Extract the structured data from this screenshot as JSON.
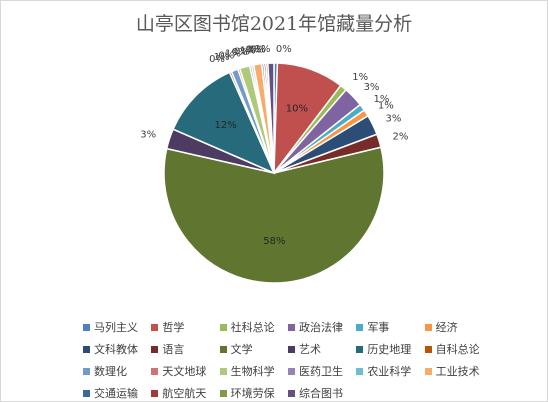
{
  "chart_data": {
    "type": "pie",
    "title": "山亭区图书馆2021年馆藏量分析",
    "legend_position": "bottom",
    "slices": [
      {
        "name": "马列主义",
        "value": 0.5,
        "label": "0%",
        "color": "#4f81bd"
      },
      {
        "name": "哲学",
        "value": 10,
        "label": "10%",
        "color": "#c0504d"
      },
      {
        "name": "社科总论",
        "value": 1,
        "label": "1%",
        "color": "#9bbb59"
      },
      {
        "name": "政治法律",
        "value": 3,
        "label": "3%",
        "color": "#8064a2"
      },
      {
        "name": "军事",
        "value": 1,
        "label": "1%",
        "color": "#4bacc6"
      },
      {
        "name": "经济",
        "value": 1,
        "label": "1%",
        "color": "#f79646"
      },
      {
        "name": "文科教体",
        "value": 3,
        "label": "3%",
        "color": "#2c4d75"
      },
      {
        "name": "语言",
        "value": 2,
        "label": "2%",
        "color": "#772c2a"
      },
      {
        "name": "文学",
        "value": 58,
        "label": "58%",
        "color": "#5f7530"
      },
      {
        "name": "艺术",
        "value": 3,
        "label": "3%",
        "color": "#4d3b62"
      },
      {
        "name": "历史地理",
        "value": 12,
        "label": "12%",
        "color": "#276a7c"
      },
      {
        "name": "自科总论",
        "value": 0.3,
        "label": "0%",
        "color": "#b65708"
      },
      {
        "name": "数理化",
        "value": 1,
        "label": "1%",
        "color": "#729aca"
      },
      {
        "name": "天文地球",
        "value": 0.3,
        "label": "0%",
        "color": "#cd7371"
      },
      {
        "name": "生物科学",
        "value": 1.5,
        "label": "1%",
        "color": "#afc97a"
      },
      {
        "name": "医药卫生",
        "value": 0.3,
        "label": "0%",
        "color": "#9983b5"
      },
      {
        "name": "农业科学",
        "value": 0.3,
        "label": "0%",
        "color": "#6fbdd1"
      },
      {
        "name": "工业技术",
        "value": 1.2,
        "label": "1%",
        "color": "#f9ab6b"
      },
      {
        "name": "交通运输",
        "value": 0.3,
        "label": "0%",
        "color": "#3a679c"
      },
      {
        "name": "航空航天",
        "value": 0.3,
        "label": "0%",
        "color": "#9f3b38"
      },
      {
        "name": "环境劳保",
        "value": 0.3,
        "label": "0%",
        "color": "#7f9c40"
      },
      {
        "name": "综合图书",
        "value": 0.9,
        "label": "1%",
        "color": "#664f83"
      }
    ]
  }
}
